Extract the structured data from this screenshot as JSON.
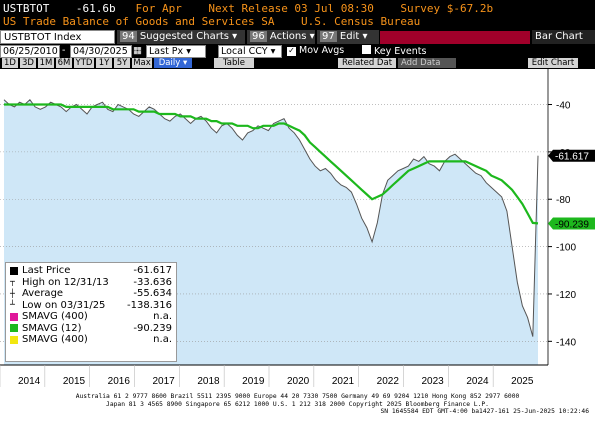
{
  "header": {
    "ticker": "USTBTOT",
    "last": "-61.6b",
    "period": "For Apr",
    "next_release": "Next Release 03 Jul 08:30",
    "survey": "Survey $-67.2b",
    "title": "US Trade Balance of Goods and Services SA",
    "source": "U.S. Census Bureau"
  },
  "toolbar": {
    "security": "USTBTOT Index",
    "suggested_num": "94",
    "suggested": "Suggested Charts",
    "actions_num": "96",
    "actions": "Actions",
    "edit_num": "97",
    "edit": "Edit",
    "chart_type": "Bar Chart"
  },
  "controls": {
    "start_date": "06/25/2010",
    "end_date": "04/30/2025",
    "last_px": "Last Px",
    "ccy": "Local CCY",
    "mov_avgs": "Mov Avgs",
    "key_events": "Key Events"
  },
  "periods": [
    "1D",
    "3D",
    "1M",
    "6M",
    "YTD",
    "1Y",
    "5Y",
    "Max"
  ],
  "period_selected": "Daily",
  "table_label": "Table",
  "related": "Related Dat",
  "add_data": "Add Data",
  "edit_chart": "Edit Chart",
  "legend": [
    {
      "label": "Last Price",
      "value": "-61.617",
      "color": "#000000"
    },
    {
      "label": "High on 12/31/13",
      "value": "-33.636",
      "color": "#000000"
    },
    {
      "label": "Average",
      "value": "-55.634",
      "color": "#000000"
    },
    {
      "label": "Low on 03/31/25",
      "value": "-138.316",
      "color": "#000000"
    },
    {
      "label": "SMAVG (400)",
      "value": "n.a.",
      "color": "#e0179a"
    },
    {
      "label": "SMAVG (12)",
      "value": "-90.239",
      "color": "#1db81d"
    },
    {
      "label": "SMAVG (400)",
      "value": "n.a.",
      "color": "#f2e70f"
    }
  ],
  "chart_data": {
    "type": "area",
    "x_labels": [
      "2014",
      "2015",
      "2016",
      "2017",
      "2018",
      "2019",
      "2020",
      "2021",
      "2022",
      "2023",
      "2024",
      "2025"
    ],
    "y_ticks": [
      -40,
      -60,
      -80,
      -100,
      -120,
      -140
    ],
    "ylim": [
      -150,
      -25
    ],
    "last_value_label": "-61.617",
    "sma_value_label": "-90.239",
    "series": [
      {
        "name": "Last Price",
        "values": [
          -38,
          -40,
          -41,
          -39,
          -40,
          -38,
          -41,
          -42,
          -41,
          -39,
          -40,
          -41,
          -43,
          -41,
          -40,
          -42,
          -44,
          -41,
          -40,
          -39,
          -42,
          -43,
          -40,
          -41,
          -42,
          -44,
          -45,
          -43,
          -41,
          -42,
          -44,
          -46,
          -47,
          -45,
          -44,
          -46,
          -48,
          -46,
          -45,
          -47,
          -50,
          -52,
          -49,
          -48,
          -50,
          -53,
          -55,
          -52,
          -51,
          -49,
          -50,
          -51,
          -48,
          -47,
          -46,
          -50,
          -52,
          -55,
          -59,
          -63,
          -66,
          -68,
          -67,
          -69,
          -72,
          -74,
          -75,
          -77,
          -82,
          -88,
          -92,
          -98,
          -90,
          -78,
          -72,
          -70,
          -68,
          -67,
          -66,
          -63,
          -64,
          -62,
          -65,
          -66,
          -68,
          -64,
          -62,
          -61,
          -63,
          -65,
          -67,
          -69,
          -70,
          -73,
          -75,
          -77,
          -79,
          -85,
          -100,
          -115,
          -125,
          -130,
          -138,
          -61.6
        ]
      },
      {
        "name": "SMAVG (12)",
        "values": [
          -40,
          -40,
          -40,
          -40,
          -40,
          -40,
          -40,
          -40,
          -40,
          -40,
          -40,
          -40,
          -41,
          -41,
          -41,
          -41,
          -41,
          -41,
          -41,
          -41,
          -41,
          -42,
          -42,
          -42,
          -42,
          -42,
          -43,
          -43,
          -43,
          -43,
          -44,
          -44,
          -44,
          -44,
          -45,
          -45,
          -45,
          -46,
          -46,
          -46,
          -47,
          -47,
          -48,
          -48,
          -48,
          -49,
          -49,
          -49,
          -50,
          -50,
          -49,
          -49,
          -49,
          -48,
          -48,
          -49,
          -50,
          -51,
          -53,
          -56,
          -58,
          -60,
          -62,
          -64,
          -66,
          -68,
          -70,
          -72,
          -74,
          -76,
          -78,
          -80,
          -79,
          -78,
          -76,
          -74,
          -72,
          -70,
          -68,
          -67,
          -66,
          -65,
          -64,
          -64,
          -64,
          -64,
          -64,
          -64,
          -64,
          -64,
          -65,
          -66,
          -67,
          -68,
          -70,
          -71,
          -72,
          -74,
          -76,
          -79,
          -82,
          -86,
          -90,
          -90.2
        ]
      }
    ]
  },
  "footer": {
    "line1": "Australia 61 2 9777 8600 Brazil 5511 2395 9000 Europe 44 20 7330 7500 Germany 49 69 9204 1210 Hong Kong 852 2977 6000",
    "line2": "Japan 81 3 4565 8900      Singapore 65 6212 1000      U.S. 1 212 318 2000        Copyright 2025 Bloomberg Finance L.P.",
    "line3": "SN 1645584 EDT  GMT-4:00 ba1427-161 25-Jun-2025 10:22:46"
  }
}
